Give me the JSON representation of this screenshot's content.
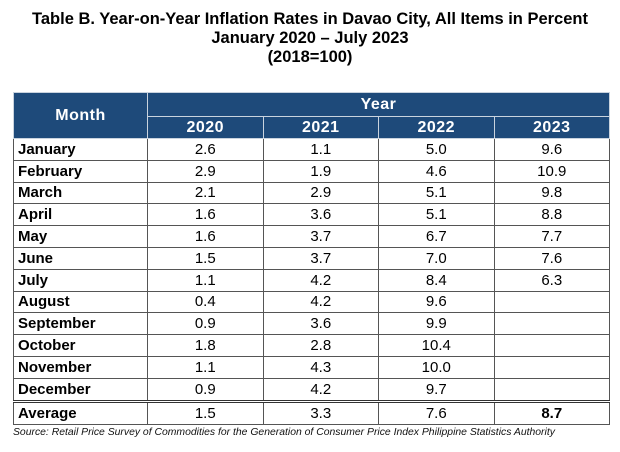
{
  "title": {
    "line1": "Table B. Year-on-Year Inflation Rates in Davao City, All Items in Percent",
    "line2": "January 2020 – July 2023",
    "line3": "(2018=100)"
  },
  "table": {
    "month_header": "Month",
    "year_header": "Year",
    "years": [
      "2020",
      "2021",
      "2022",
      "2023"
    ],
    "rows": [
      {
        "month": "January",
        "values": [
          "2.6",
          "1.1",
          "5.0",
          "9.6"
        ]
      },
      {
        "month": "February",
        "values": [
          "2.9",
          "1.9",
          "4.6",
          "10.9"
        ]
      },
      {
        "month": "March",
        "values": [
          "2.1",
          "2.9",
          "5.1",
          "9.8"
        ]
      },
      {
        "month": "April",
        "values": [
          "1.6",
          "3.6",
          "5.1",
          "8.8"
        ]
      },
      {
        "month": "May",
        "values": [
          "1.6",
          "3.7",
          "6.7",
          "7.7"
        ]
      },
      {
        "month": "June",
        "values": [
          "1.5",
          "3.7",
          "7.0",
          "7.6"
        ]
      },
      {
        "month": "July",
        "values": [
          "1.1",
          "4.2",
          "8.4",
          "6.3"
        ]
      },
      {
        "month": "August",
        "values": [
          "0.4",
          "4.2",
          "9.6",
          ""
        ]
      },
      {
        "month": "September",
        "values": [
          "0.9",
          "3.6",
          "9.9",
          ""
        ]
      },
      {
        "month": "October",
        "values": [
          "1.8",
          "2.8",
          "10.4",
          ""
        ]
      },
      {
        "month": "November",
        "values": [
          "1.1",
          "4.3",
          "10.0",
          ""
        ]
      },
      {
        "month": "December",
        "values": [
          "0.9",
          "4.2",
          "9.7",
          ""
        ]
      }
    ],
    "average": {
      "label": "Average",
      "values": [
        "1.5",
        "3.3",
        "7.6",
        "8.7"
      ]
    }
  },
  "source": "Source: Retail Price Survey of Commodities for the Generation of Consumer Price Index Philippine Statistics Authority",
  "colors": {
    "header_bg": "#1e4a7a",
    "header_text": "#ffffff"
  }
}
